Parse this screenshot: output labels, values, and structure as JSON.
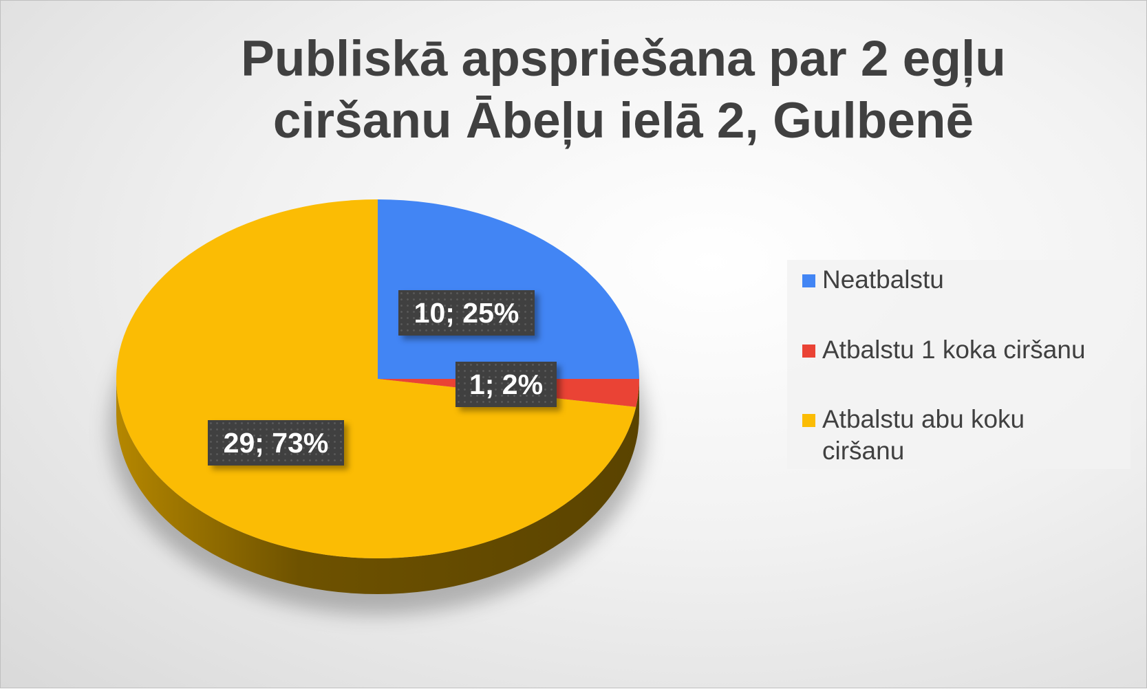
{
  "chart_data": {
    "type": "pie",
    "style": "3d",
    "title_lines": [
      "Publiskā apspriešana par 2 egļu",
      "ciršanu Ābeļu ielā 2, Gulbenē"
    ],
    "categories": [
      "Neatbalstu",
      "Atbalstu 1 koka ciršanu",
      "Atbalstu abu koku ciršanu"
    ],
    "legend_lines": [
      [
        "Neatbalstu"
      ],
      [
        "Atbalstu 1 koka ciršanu"
      ],
      [
        "Atbalstu abu koku",
        "ciršanu"
      ]
    ],
    "values": [
      10,
      1,
      29
    ],
    "data_labels": [
      "10; 25%",
      "1; 2%",
      "29; 73%"
    ],
    "colors": [
      "#4285f4",
      "#ea4335",
      "#fbbc04"
    ],
    "legend_position": "right"
  }
}
